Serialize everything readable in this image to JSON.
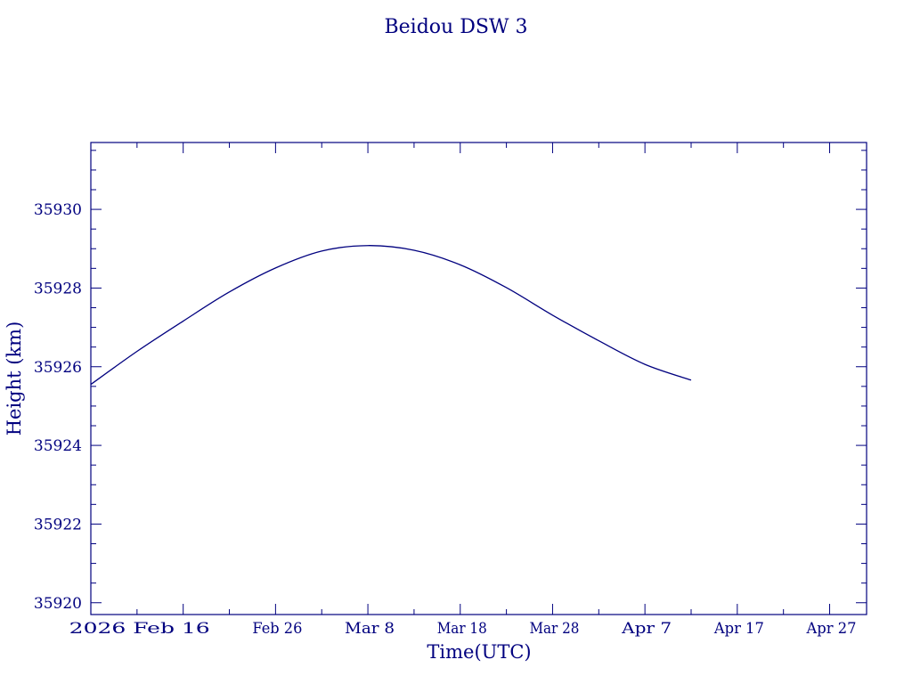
{
  "chart_data": {
    "type": "line",
    "title": "Beidou DSW 3",
    "xlabel": "Time(UTC)",
    "ylabel": "Height (km)",
    "x_tick_labels": [
      "2026 Feb 16",
      "Feb 26",
      "Mar  8",
      "Mar 18",
      "Mar 28",
      "Apr  7",
      "Apr 17",
      "Apr 27"
    ],
    "x_tick_dates": [
      "2026-02-16",
      "2026-02-26",
      "2026-03-08",
      "2026-03-18",
      "2026-03-28",
      "2026-04-07",
      "2026-04-17",
      "2026-04-27"
    ],
    "xlim": [
      "2026-02-06",
      "2026-05-01"
    ],
    "y_tick_labels": [
      "35920",
      "35922",
      "35924",
      "35926",
      "35928",
      "35930"
    ],
    "y_ticks": [
      35920,
      35922,
      35924,
      35926,
      35928,
      35930
    ],
    "ylim": [
      35919.7,
      35931.7
    ],
    "grid": false,
    "line_color": "#00007f",
    "series": [
      {
        "x": [
          "2026-02-06",
          "2026-02-11",
          "2026-02-16",
          "2026-02-21",
          "2026-02-26",
          "2026-03-03",
          "2026-03-08",
          "2026-03-13",
          "2026-03-18",
          "2026-03-23",
          "2026-03-28",
          "2026-04-02",
          "2026-04-07",
          "2026-04-12"
        ],
        "y": [
          35925.55,
          35926.39,
          35927.16,
          35927.9,
          35928.51,
          35928.94,
          35929.08,
          35928.96,
          35928.59,
          35928.01,
          35927.31,
          35926.66,
          35926.06,
          35925.66
        ]
      }
    ]
  }
}
